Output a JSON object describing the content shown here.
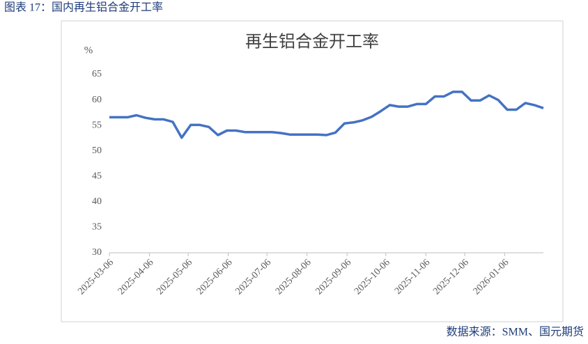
{
  "header": {
    "title": "图表 17：国内再生铝合金开工率"
  },
  "footer": {
    "source": "数据来源：SMM、国元期货"
  },
  "chart_data": {
    "type": "line",
    "title": "再生铝合金开工率",
    "y_label": "%",
    "x": [
      "2025-03-06",
      "2025-03-13",
      "2025-03-20",
      "2025-03-27",
      "2025-04-03",
      "2025-04-10",
      "2025-04-17",
      "2025-04-24",
      "2025-05-01",
      "2025-05-08",
      "2025-05-15",
      "2025-05-22",
      "2025-05-29",
      "2025-06-05",
      "2025-06-12",
      "2025-06-19",
      "2025-06-26",
      "2025-07-03",
      "2025-07-10",
      "2025-07-17",
      "2025-07-24",
      "2025-07-31",
      "2025-08-07",
      "2025-08-14",
      "2025-08-21",
      "2025-08-28",
      "2025-09-04",
      "2025-09-11",
      "2025-09-18",
      "2025-09-25",
      "2025-10-02",
      "2025-10-09",
      "2025-10-16",
      "2025-10-23",
      "2025-10-30",
      "2025-11-06",
      "2025-11-13",
      "2025-11-20",
      "2025-11-27",
      "2025-12-04",
      "2025-12-11",
      "2025-12-18",
      "2025-12-25",
      "2026-01-01",
      "2026-01-08",
      "2026-01-15",
      "2026-01-22",
      "2026-01-29",
      "2026-02-05"
    ],
    "series": [
      {
        "name": "再生铝合金开工率",
        "color": "#4472c4",
        "values": [
          56.6,
          56.6,
          56.6,
          57.0,
          56.5,
          56.2,
          56.2,
          55.7,
          52.6,
          55.1,
          55.1,
          54.7,
          53.1,
          54.0,
          54.0,
          53.7,
          53.7,
          53.7,
          53.7,
          53.5,
          53.2,
          53.2,
          53.2,
          53.2,
          53.1,
          53.6,
          55.4,
          55.6,
          56.0,
          56.7,
          57.8,
          59.0,
          58.7,
          58.7,
          59.2,
          59.2,
          60.7,
          60.7,
          61.6,
          61.6,
          59.9,
          59.9,
          60.9,
          60.0,
          58.1,
          58.1,
          59.4,
          59.0,
          58.4
        ]
      }
    ],
    "xlim": [
      "2025-03-06",
      "2026-02-05"
    ],
    "xticks": [
      "2025-03-06",
      "2025-04-06",
      "2025-05-06",
      "2025-06-06",
      "2025-07-06",
      "2025-08-06",
      "2025-09-06",
      "2025-10-06",
      "2025-11-06",
      "2025-12-06",
      "2026-01-06"
    ],
    "ylim": [
      30,
      65
    ],
    "yticks": [
      30,
      35,
      40,
      45,
      50,
      55,
      60,
      65
    ],
    "grid": false
  }
}
